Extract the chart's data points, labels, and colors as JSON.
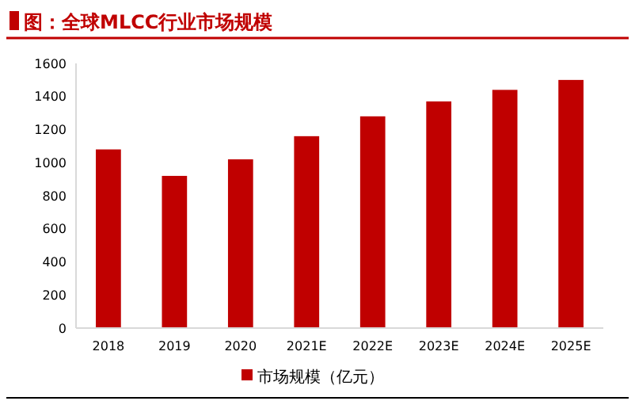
{
  "chart_data": {
    "type": "bar",
    "title": "图：全球MLCC行业市场规模",
    "categories": [
      "2018",
      "2019",
      "2020",
      "2021E",
      "2022E",
      "2023E",
      "2024E",
      "2025E"
    ],
    "series": [
      {
        "name": "市场规模（亿元）",
        "color": "#c00000",
        "values": [
          1080,
          920,
          1020,
          1160,
          1280,
          1370,
          1440,
          1500
        ]
      }
    ],
    "ylim": [
      0,
      1600
    ],
    "yticks": [
      0,
      200,
      400,
      600,
      800,
      1000,
      1200,
      1400,
      1600
    ],
    "legend": "bottom"
  }
}
